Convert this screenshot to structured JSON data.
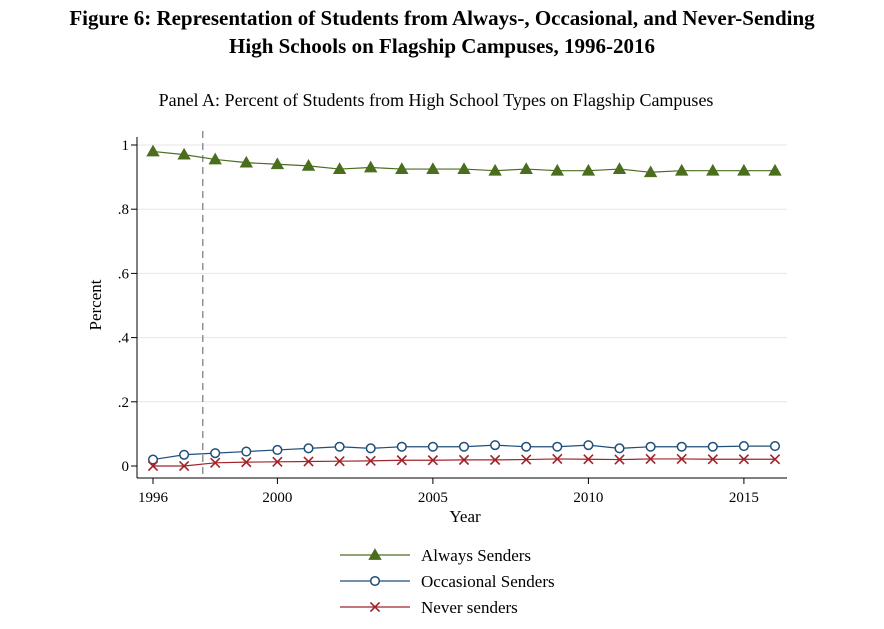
{
  "figure": {
    "title_line1": "Figure 6: Representation of Students from Always-, Occasional, and Never-Sending",
    "title_line2": "High Schools on Flagship Campuses, 1996-2016"
  },
  "chart_data": {
    "type": "line",
    "title": "Panel A: Percent of Students from High School Types on Flagship Campuses",
    "xlabel": "Year",
    "ylabel": "Percent",
    "xlim": [
      1996,
      2016
    ],
    "ylim": [
      0,
      1
    ],
    "x_ticks": [
      1996,
      2000,
      2005,
      2010,
      2015
    ],
    "y_ticks": [
      0,
      0.2,
      0.4,
      0.6,
      0.8,
      1
    ],
    "y_tick_labels": [
      "0",
      ".2",
      ".4",
      ".6",
      ".8",
      "1"
    ],
    "reference_line_x": 1997.6,
    "grid": "horizontal",
    "legend_position": "bottom",
    "x": [
      1996,
      1997,
      1998,
      1999,
      2000,
      2001,
      2002,
      2003,
      2004,
      2005,
      2006,
      2007,
      2008,
      2009,
      2010,
      2011,
      2012,
      2013,
      2014,
      2015,
      2016
    ],
    "series": [
      {
        "name": "Always Senders",
        "color": "#4a6e1e",
        "marker": "triangle",
        "values": [
          0.98,
          0.97,
          0.955,
          0.945,
          0.94,
          0.935,
          0.925,
          0.93,
          0.925,
          0.925,
          0.925,
          0.92,
          0.925,
          0.92,
          0.92,
          0.925,
          0.915,
          0.92,
          0.92,
          0.92,
          0.92
        ]
      },
      {
        "name": "Occasional Senders",
        "color": "#1f4e79",
        "marker": "circle",
        "values": [
          0.02,
          0.035,
          0.04,
          0.045,
          0.05,
          0.055,
          0.06,
          0.055,
          0.06,
          0.06,
          0.06,
          0.065,
          0.06,
          0.06,
          0.065,
          0.055,
          0.06,
          0.06,
          0.06,
          0.062,
          0.062
        ]
      },
      {
        "name": "Never senders",
        "color": "#a0242a",
        "marker": "x",
        "values": [
          0.0,
          0.0,
          0.01,
          0.012,
          0.013,
          0.014,
          0.015,
          0.016,
          0.018,
          0.018,
          0.019,
          0.019,
          0.02,
          0.022,
          0.021,
          0.02,
          0.022,
          0.022,
          0.021,
          0.021,
          0.021
        ]
      }
    ]
  }
}
